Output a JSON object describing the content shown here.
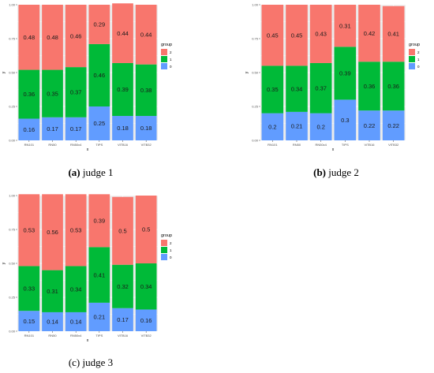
{
  "chart_data": [
    {
      "type": "bar",
      "caption_label": "(a)",
      "caption_text": "judge 1",
      "xlabel": "x",
      "ylabel": "y",
      "legend_title": "group",
      "legend_position": "right",
      "ylim": [
        0,
        1
      ],
      "yticks": [
        "0.00",
        "0.25",
        "0.50",
        "0.75",
        "1.00"
      ],
      "categories": [
        "RN101",
        "RN50",
        "RN50x4",
        "TIPS",
        "ViTB16",
        "ViTB32"
      ],
      "series": [
        {
          "name": "0",
          "values": [
            0.16,
            0.17,
            0.17,
            0.25,
            0.18,
            0.18
          ],
          "color": "#619CFF"
        },
        {
          "name": "1",
          "values": [
            0.36,
            0.35,
            0.37,
            0.46,
            0.39,
            0.38
          ],
          "color": "#00BA38"
        },
        {
          "name": "2",
          "values": [
            0.48,
            0.48,
            0.46,
            0.29,
            0.44,
            0.44
          ],
          "color": "#F8766D"
        }
      ]
    },
    {
      "type": "bar",
      "caption_label": "(b)",
      "caption_text": "judge 2",
      "xlabel": "x",
      "ylabel": "y",
      "legend_title": "group",
      "legend_position": "right",
      "ylim": [
        0,
        1
      ],
      "yticks": [
        "0.00",
        "0.25",
        "0.50",
        "0.75",
        "1.00"
      ],
      "categories": [
        "RN101",
        "RN50",
        "RN50x4",
        "TIPS",
        "ViTB16",
        "ViTB32"
      ],
      "series": [
        {
          "name": "0",
          "values": [
            0.2,
            0.21,
            0.2,
            0.3,
            0.22,
            0.22
          ],
          "color": "#619CFF"
        },
        {
          "name": "1",
          "values": [
            0.35,
            0.34,
            0.37,
            0.39,
            0.36,
            0.36
          ],
          "color": "#00BA38"
        },
        {
          "name": "2",
          "values": [
            0.45,
            0.45,
            0.43,
            0.31,
            0.42,
            0.41
          ],
          "color": "#F8766D"
        }
      ]
    },
    {
      "type": "bar",
      "caption_label": "(c)",
      "caption_text": "judge 3",
      "xlabel": "x",
      "ylabel": "y",
      "legend_title": "group",
      "legend_position": "right",
      "ylim": [
        0,
        1
      ],
      "yticks": [
        "0.00",
        "0.25",
        "0.50",
        "0.75",
        "1.00"
      ],
      "categories": [
        "RN101",
        "RN50",
        "RN50x4",
        "TIPS",
        "ViTB16",
        "ViTB32"
      ],
      "series": [
        {
          "name": "0",
          "values": [
            0.15,
            0.14,
            0.14,
            0.21,
            0.17,
            0.16
          ],
          "color": "#619CFF"
        },
        {
          "name": "1",
          "values": [
            0.33,
            0.31,
            0.34,
            0.41,
            0.32,
            0.34
          ],
          "color": "#00BA38"
        },
        {
          "name": "2",
          "values": [
            0.53,
            0.56,
            0.53,
            0.39,
            0.5,
            0.5
          ],
          "color": "#F8766D"
        }
      ]
    }
  ]
}
